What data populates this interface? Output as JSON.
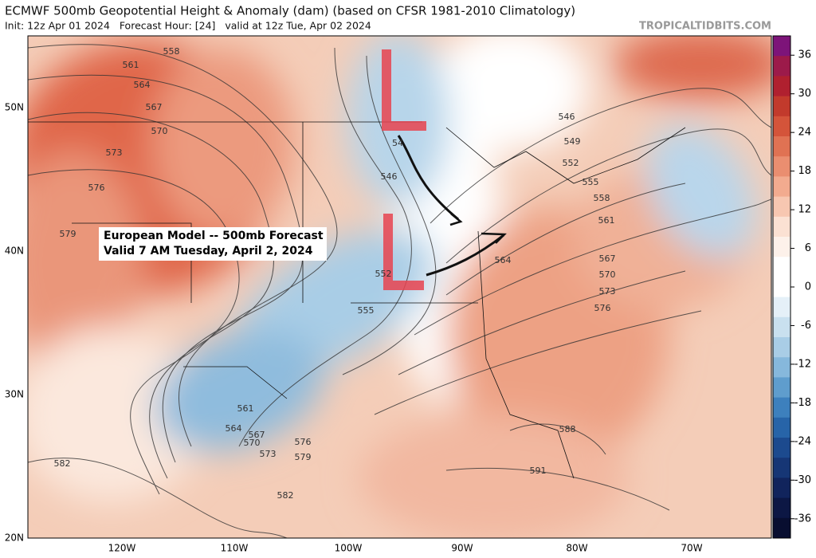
{
  "header": {
    "title": "ECMWF 500mb Geopotential Height & Anomaly (dam) (based on CFSR 1981-2010 Climatology)",
    "subtitle": "Init: 12z Apr 01 2024   Forecast Hour: [24]   valid at 12z Tue, Apr 02 2024",
    "source": "TROPICALTIDBITS.COM"
  },
  "annotation": {
    "lines": [
      "European Model -- 500mb Forecast",
      "Valid 7 AM Tuesday, April 2, 2024"
    ]
  },
  "lat_labels": [
    "50N",
    "40N",
    "30N",
    "20N"
  ],
  "lon_labels": [
    "120W",
    "110W",
    "100W",
    "90W",
    "80W",
    "70W"
  ],
  "contour_labels": [
    "558",
    "561",
    "564",
    "567",
    "570",
    "573",
    "576",
    "579",
    "582",
    "546",
    "54",
    "552",
    "555",
    "561",
    "564",
    "567",
    "570",
    "573",
    "576",
    "579",
    "582",
    "546",
    "549",
    "552",
    "555",
    "558",
    "561",
    "564",
    "567",
    "570",
    "573",
    "576",
    "588",
    "591"
  ],
  "colorbar": {
    "ticks": [
      36,
      30,
      24,
      18,
      12,
      6,
      0,
      -6,
      -12,
      -18,
      -24,
      -30,
      -36
    ]
  }
}
